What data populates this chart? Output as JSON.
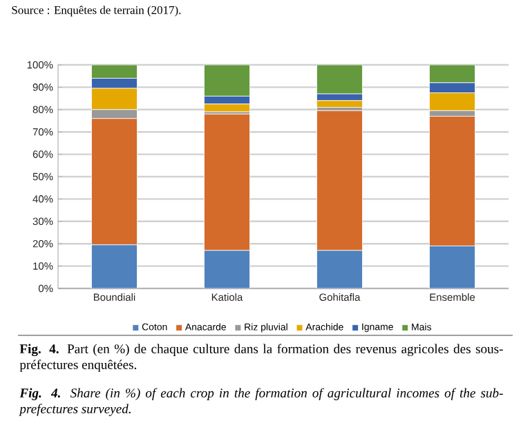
{
  "chart_data": {
    "type": "bar",
    "stacked": true,
    "categories": [
      "Boundiali",
      "Katiola",
      "Gohitafla",
      "Ensemble"
    ],
    "series": [
      {
        "name": "Coton",
        "color": "#4f81bd",
        "values": [
          19.5,
          17,
          17,
          19
        ]
      },
      {
        "name": "Anacarde",
        "color": "#d46b2b",
        "values": [
          56.5,
          61,
          62.5,
          58
        ]
      },
      {
        "name": "Riz pluvial",
        "color": "#999999",
        "values": [
          4,
          1,
          1.5,
          2.5
        ]
      },
      {
        "name": "Arachide",
        "color": "#e5a800",
        "values": [
          9.5,
          3.5,
          3,
          8
        ]
      },
      {
        "name": "Igname",
        "color": "#3a63ad",
        "values": [
          4.5,
          3.5,
          3,
          4.5
        ]
      },
      {
        "name": "Mais",
        "color": "#64993d",
        "values": [
          6,
          14,
          13,
          8
        ]
      }
    ],
    "ylim": [
      0,
      100
    ],
    "yticks": [
      {
        "value": 0,
        "label": "0%"
      },
      {
        "value": 10,
        "label": "10%"
      },
      {
        "value": 20,
        "label": "20%"
      },
      {
        "value": 30,
        "label": "30%"
      },
      {
        "value": 40,
        "label": "40%"
      },
      {
        "value": 50,
        "label": "50%"
      },
      {
        "value": 60,
        "label": "60%"
      },
      {
        "value": 70,
        "label": "70%"
      },
      {
        "value": 80,
        "label": "80%"
      },
      {
        "value": 90,
        "label": "90%"
      },
      {
        "value": 100,
        "label": "100%"
      }
    ],
    "grid": "y",
    "legend": "bottom",
    "annotations": [
      "Source : Enquêtes de terrain (2017).",
      "**Fig. 4.** Part (en %) de chaque culture dans la formation des revenus agricoles des sous-préfectures enquêtées.",
      "**Fig. 4.** Share (in %) of each crop in the formation of agricultural incomes of the sub-prefectures surveyed."
    ]
  }
}
